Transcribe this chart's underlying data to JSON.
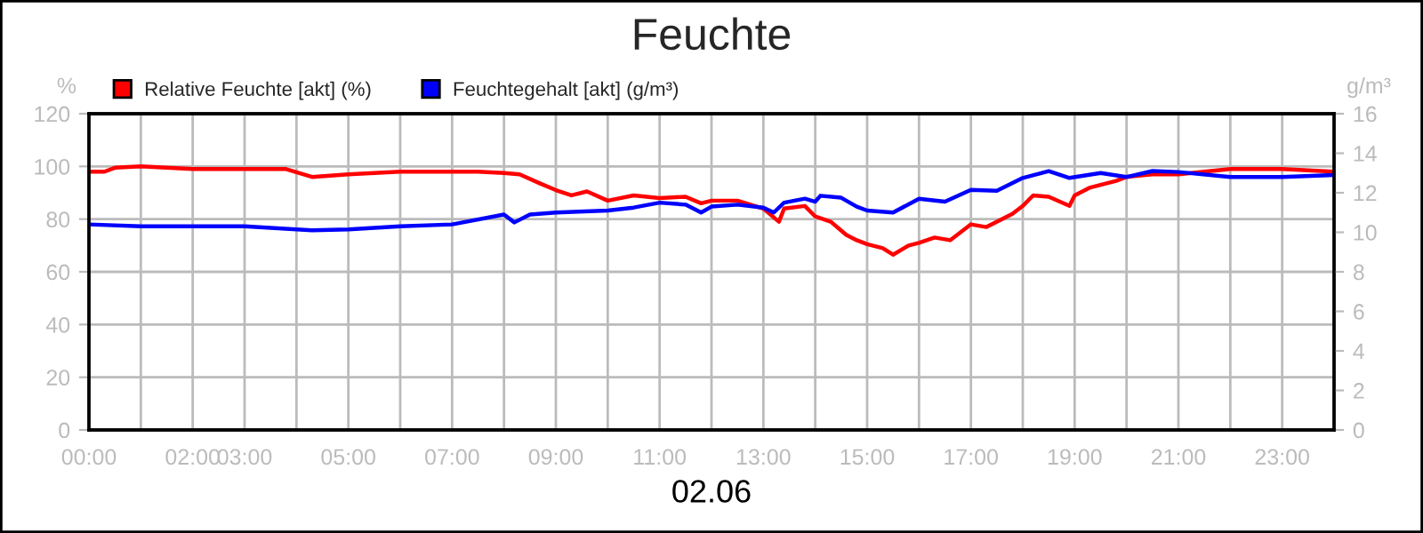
{
  "chart_data": {
    "type": "line",
    "title": "Feuchte",
    "xlabel": "02.06",
    "ylabel": "%",
    "y2label": "g/m³",
    "xlim": [
      0,
      24
    ],
    "xticks": [
      {
        "value": 0,
        "label": "00:00"
      },
      {
        "value": 1,
        "label": null
      },
      {
        "value": 2,
        "label": "02:00"
      },
      {
        "value": 3,
        "label": "03:00"
      },
      {
        "value": 4,
        "label": null
      },
      {
        "value": 5,
        "label": "05:00"
      },
      {
        "value": 6,
        "label": null
      },
      {
        "value": 7,
        "label": "07:00"
      },
      {
        "value": 8,
        "label": null
      },
      {
        "value": 9,
        "label": "09:00"
      },
      {
        "value": 10,
        "label": null
      },
      {
        "value": 11,
        "label": "11:00"
      },
      {
        "value": 12,
        "label": null
      },
      {
        "value": 13,
        "label": "13:00"
      },
      {
        "value": 14,
        "label": null
      },
      {
        "value": 15,
        "label": "15:00"
      },
      {
        "value": 16,
        "label": null
      },
      {
        "value": 17,
        "label": "17:00"
      },
      {
        "value": 18,
        "label": null
      },
      {
        "value": 19,
        "label": "19:00"
      },
      {
        "value": 20,
        "label": null
      },
      {
        "value": 21,
        "label": "21:00"
      },
      {
        "value": 22,
        "label": null
      },
      {
        "value": 23,
        "label": "23:00"
      }
    ],
    "ylim": [
      0,
      120
    ],
    "yticks": [
      0,
      20,
      40,
      60,
      80,
      100,
      120
    ],
    "y2lim": [
      0,
      16
    ],
    "y2ticks": [
      0,
      2,
      4,
      6,
      8,
      10,
      12,
      14,
      16
    ],
    "grid": true,
    "legend": "top left",
    "marker": "none",
    "line_style": "solid",
    "series": [
      {
        "name": "Relative Feuchte [akt] (%)",
        "color": "#ff0000",
        "x": [
          0,
          0.3,
          0.5,
          1,
          2,
          3,
          3.8,
          4.3,
          5,
          6,
          7,
          7.5,
          8,
          8.3,
          8.7,
          9,
          9.3,
          9.6,
          10,
          10.5,
          11,
          11.5,
          11.8,
          12,
          12.5,
          13,
          13.3,
          13.4,
          13.8,
          14,
          14.3,
          14.6,
          14.8,
          15,
          15.3,
          15.5,
          15.8,
          16,
          16.3,
          16.6,
          17,
          17.3,
          17.8,
          18,
          18.2,
          18.5,
          18.9,
          19,
          19.3,
          19.8,
          20,
          20.5,
          21,
          22,
          23,
          24
        ],
        "values": [
          98,
          98,
          99.5,
          100,
          99,
          99,
          99,
          96,
          97,
          98,
          98,
          98,
          97.5,
          97,
          93.5,
          91,
          89,
          90.5,
          87,
          89,
          88,
          88.5,
          86,
          87,
          87,
          84,
          79,
          84,
          85,
          81,
          79,
          74,
          72,
          70.5,
          69,
          66.5,
          70,
          71,
          73,
          72,
          78,
          77,
          82,
          85,
          89,
          88.5,
          85,
          89,
          92,
          94.5,
          96,
          97,
          97,
          99,
          99,
          98
        ]
      },
      {
        "name": "Feuchtegehalt [akt] (g/m³)",
        "color": "#0000ff",
        "axis": "y2",
        "x": [
          0,
          1,
          2,
          3,
          4.3,
          5,
          6,
          7,
          8,
          8.2,
          8.5,
          9,
          10,
          10.5,
          11,
          11.5,
          11.8,
          12,
          12.5,
          13,
          13.2,
          13.4,
          13.8,
          14,
          14.1,
          14.5,
          14.8,
          15,
          15.5,
          16,
          16.5,
          17,
          17.5,
          18,
          18.5,
          18.9,
          19.5,
          20,
          20.5,
          21,
          22,
          23,
          24
        ],
        "values": [
          10.4,
          10.3,
          10.3,
          10.3,
          10.1,
          10.15,
          10.3,
          10.4,
          10.9,
          10.5,
          10.9,
          11,
          11.1,
          11.25,
          11.5,
          11.4,
          11,
          11.3,
          11.4,
          11.25,
          11,
          11.5,
          11.7,
          11.55,
          11.85,
          11.75,
          11.3,
          11.1,
          11,
          11.7,
          11.55,
          12.15,
          12.1,
          12.75,
          13.1,
          12.75,
          13,
          12.8,
          13.1,
          13.05,
          12.8,
          12.8,
          12.9
        ]
      }
    ]
  }
}
